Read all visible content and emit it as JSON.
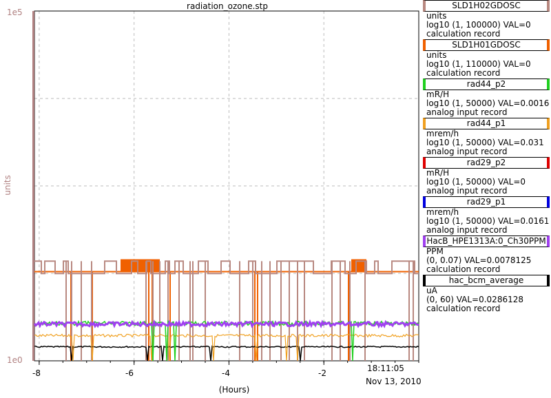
{
  "title": "radiation_ozone.stp",
  "y_axis": {
    "top_label": "1e5",
    "bottom_label": "1e0",
    "label": "units",
    "color": "#b08080"
  },
  "x_axis": {
    "ticks": [
      "-8",
      "-6",
      "-4",
      "-2"
    ],
    "time": "18:11:05",
    "date": "Nov 13, 2010",
    "label": "(Hours)"
  },
  "legend": [
    {
      "name": "SLD1H02GDOSC",
      "units": "units",
      "range": "log10 (1, 100000) VAL=0",
      "type": "calculation record",
      "color": "#b88880"
    },
    {
      "name": "SLD1H01GDOSC",
      "units": "units",
      "range": "log10 (1, 110000) VAL=0",
      "type": "calculation record",
      "color": "#f06000"
    },
    {
      "name": "rad44_p2",
      "units": "mR/H",
      "range": "log10 (1, 50000) VAL=0.0016",
      "type": "analog input record",
      "color": "#20d020"
    },
    {
      "name": "rad44_p1",
      "units": "mrem/h",
      "range": "log10 (1, 50000) VAL=0.031",
      "type": "analog input record",
      "color": "#f0a020"
    },
    {
      "name": "rad29_p2",
      "units": "mR/H",
      "range": "log10 (1, 50000) VAL=0",
      "type": "analog input record",
      "color": "#e00000"
    },
    {
      "name": "rad29_p1",
      "units": "mrem/h",
      "range": "log10 (1, 50000) VAL=0.0161",
      "type": "analog input record",
      "color": "#0000e0"
    },
    {
      "name": "HacB_HPE1313A:0_Ch30PPM",
      "units": "PPM",
      "range": "(0, 0.07) VAL=0.0078125",
      "type": "calculation record",
      "color": "#a040f0"
    },
    {
      "name": "hac_bcm_average",
      "units": "uA",
      "range": "(0, 60) VAL=0.0286128",
      "type": "calculation record",
      "color": "#000000"
    }
  ],
  "chart_data": {
    "type": "line",
    "xlim": [
      -8.1,
      0
    ],
    "ylim": [
      0,
      1
    ],
    "grid": true,
    "series": [
      {
        "name": "SLD1H02GDOSC",
        "level": 0.285
      },
      {
        "name": "SLD1H01GDOSC",
        "level": 0.255
      },
      {
        "name": "rad44_p2",
        "level": 0.107
      },
      {
        "name": "rad44_p1",
        "level": 0.072
      },
      {
        "name": "HacB_HPE1313A:0_Ch30PPM",
        "level": 0.105
      },
      {
        "name": "hac_bcm_average",
        "level": 0.04
      }
    ]
  }
}
